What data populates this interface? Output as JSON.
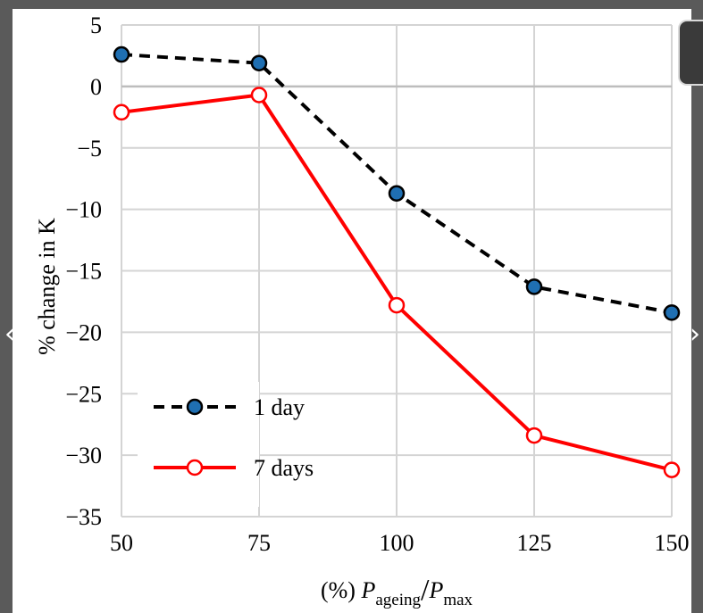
{
  "viewer": {
    "prev_arrow": "‹",
    "next_arrow": "›"
  },
  "chart_data": {
    "type": "line",
    "title": "",
    "xlabel": "(%) P_ageing / P_max",
    "xlabel_prefix": "(%) ",
    "xlabel_p1": "P",
    "xlabel_sub1": "ageing",
    "xlabel_slash": "/",
    "xlabel_p2": "P",
    "xlabel_sub2": "max",
    "ylabel": "% change in K",
    "x": [
      50,
      75,
      100,
      125,
      150
    ],
    "x_tick_labels": [
      "50",
      "75",
      "100",
      "125",
      "150"
    ],
    "y_ticks": [
      5,
      0,
      -5,
      -10,
      -15,
      -20,
      -25,
      -30,
      -35
    ],
    "y_tick_labels": [
      "5",
      "0",
      "−5",
      "−10",
      "−15",
      "−20",
      "−25",
      "−30",
      "−35"
    ],
    "xlim": [
      50,
      150
    ],
    "ylim": [
      -35,
      5
    ],
    "grid": true,
    "legend_position": "bottom-left",
    "series": [
      {
        "name": "1 day",
        "values": [
          2.6,
          1.9,
          -8.7,
          -16.3,
          -18.4
        ],
        "line_color": "#000000",
        "line_style": "dashed",
        "marker_fill": "#1f6fb2",
        "marker_edge": "#000000"
      },
      {
        "name": "7 days",
        "values": [
          -2.1,
          -0.7,
          -17.8,
          -28.4,
          -31.2
        ],
        "line_color": "#ff0000",
        "line_style": "solid",
        "marker_fill": "#ffffff",
        "marker_edge": "#ff0000"
      }
    ]
  }
}
